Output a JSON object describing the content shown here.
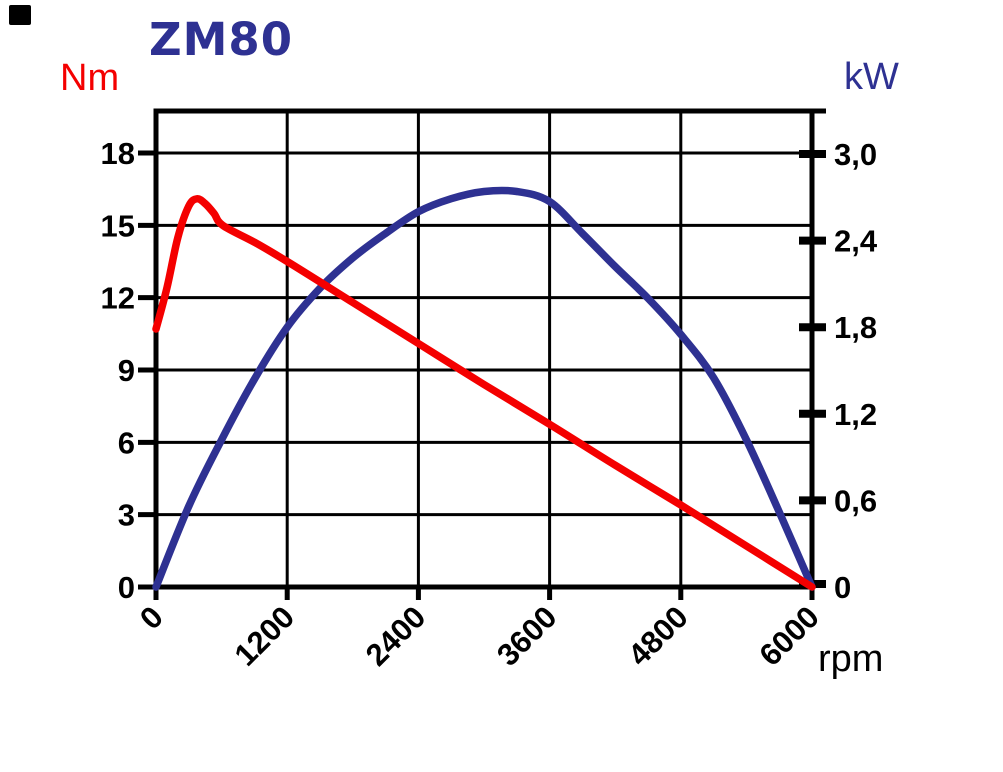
{
  "title": "ZM80",
  "colors": {
    "torque_red": "#f40000",
    "power_navy": "#2e3192",
    "axis_black": "#000000",
    "background": "#ffffff"
  },
  "left_axis": {
    "label": "Nm",
    "tick_labels": [
      "0",
      "3",
      "6",
      "9",
      "12",
      "15",
      "18"
    ],
    "tick_values": [
      0,
      3,
      6,
      9,
      12,
      15,
      18
    ],
    "min": 0,
    "max": 18
  },
  "right_axis": {
    "label": "kW",
    "tick_labels": [
      "0",
      "0,6",
      "1,2",
      "1,8",
      "2,4",
      "3,0"
    ],
    "tick_values": [
      0,
      0.6,
      1.2,
      1.8,
      2.4,
      3.0
    ],
    "min": 0,
    "max": 3.0
  },
  "x_axis": {
    "label": "rpm",
    "tick_labels": [
      "0",
      "1200",
      "2400",
      "3600",
      "4800",
      "6000"
    ],
    "tick_values": [
      0,
      1200,
      2400,
      3600,
      4800,
      6000
    ],
    "min": 0,
    "max": 6000
  },
  "chart_data": {
    "type": "line",
    "title": "ZM80",
    "xlabel": "rpm",
    "ylabel_left": "Nm",
    "ylabel_right": "kW",
    "xlim": [
      0,
      6000
    ],
    "ylim_left": [
      0,
      18
    ],
    "ylim_right": [
      0,
      3.0
    ],
    "grid": true,
    "legend": "none",
    "series": [
      {
        "name": "torque",
        "unit": "Nm",
        "axis": "left",
        "color": "#f40000",
        "points": [
          [
            0,
            10.7
          ],
          [
            100,
            12.4
          ],
          [
            200,
            14.5
          ],
          [
            300,
            15.8
          ],
          [
            375,
            16.1
          ],
          [
            450,
            15.9
          ],
          [
            530,
            15.5
          ],
          [
            610,
            15.0
          ],
          [
            900,
            14.3
          ],
          [
            1200,
            13.5
          ],
          [
            1800,
            11.8
          ],
          [
            2400,
            10.1
          ],
          [
            3000,
            8.4
          ],
          [
            3600,
            6.75
          ],
          [
            4200,
            5.05
          ],
          [
            4800,
            3.4
          ],
          [
            5400,
            1.7
          ],
          [
            6000,
            0
          ]
        ]
      },
      {
        "name": "power",
        "unit": "kW",
        "axis": "right",
        "color": "#2e3192",
        "points": [
          [
            0,
            0
          ],
          [
            300,
            0.56
          ],
          [
            600,
            1.02
          ],
          [
            900,
            1.44
          ],
          [
            1200,
            1.8
          ],
          [
            1500,
            2.07
          ],
          [
            1800,
            2.28
          ],
          [
            2100,
            2.45
          ],
          [
            2400,
            2.6
          ],
          [
            2700,
            2.69
          ],
          [
            3000,
            2.74
          ],
          [
            3300,
            2.74
          ],
          [
            3600,
            2.67
          ],
          [
            3900,
            2.45
          ],
          [
            4200,
            2.22
          ],
          [
            4500,
            2.0
          ],
          [
            4800,
            1.75
          ],
          [
            5100,
            1.45
          ],
          [
            5400,
            1.02
          ],
          [
            5700,
            0.52
          ],
          [
            6000,
            0
          ]
        ]
      }
    ]
  }
}
